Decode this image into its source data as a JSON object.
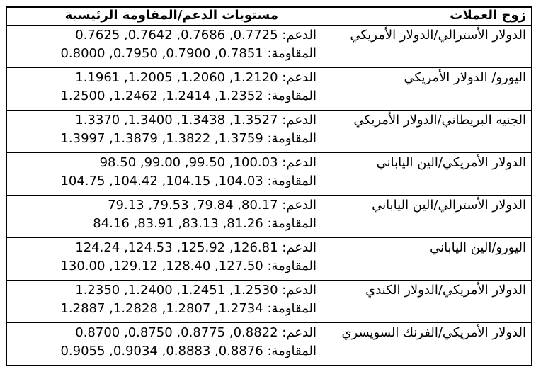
{
  "colors": {
    "border": "#000000",
    "text": "#000000",
    "background": "#ffffff"
  },
  "table": {
    "headers": {
      "pair": "زوج العملات",
      "levels": "مستويات الدعم/المقاومة الرئيسية"
    },
    "rows": [
      {
        "pair": "الدولار الأسترالي/الدولار الأمريكي",
        "support": "الدعم: 0.7725, 0.7686, 0.7642, 0.7625",
        "resistance": "المقاومة: 0.7851, 0.7900, 0.7950, 0.8000"
      },
      {
        "pair": "اليورو/ الدولار الأمريكي",
        "support": "الدعم: 1.2120, 1.2060, 1.2005, 1.1961",
        "resistance": "المقاومة: 1.2352, 1.2414, 1.2462, 1.2500"
      },
      {
        "pair": "الجنيه البريطاني/الدولار الأمريكي",
        "support": "الدعم: 1.3527, 1.3438, 1.3400, 1.3370",
        "resistance": "المقاومة: 1.3759, 1.3822, 1.3879, 1.3997"
      },
      {
        "pair": "الدولار الأمريكي/الين الياباني",
        "support": "الدعم: 100.03, 99.50, 99.00, 98.50",
        "resistance": "المقاومة: 104.03, 104.15, 104.42, 104.75"
      },
      {
        "pair": "الدولار الأسترالي/الين الياباني",
        "support": "الدعم: 80.17, 79.84, 79.53, 79.13",
        "resistance": "المقاومة: 81.26, 83.13, 83.91, 84.16"
      },
      {
        "pair": "اليورو/الين الياباني",
        "support": "الدعم: 126.81, 125.92, 124.53, 124.24",
        "resistance": "المقاومة: 127.50, 128.40, 129.12, 130.00"
      },
      {
        "pair": "الدولار الأمريكي/الدولار الكندي",
        "support": "الدعم: 1.2530, 1.2451, 1.2400, 1.2350",
        "resistance": "المقاومة: 1.2734, 1.2807, 1.2828, 1.2887"
      },
      {
        "pair": "الدولار الأمريكي/الفرنك السويسري",
        "support": "الدعم: 0.8822, 0.8775, 0.8750, 0.8700",
        "resistance": "المقاومة: 0.8876, 0.8883, 0.9034, 0.9055"
      }
    ]
  }
}
